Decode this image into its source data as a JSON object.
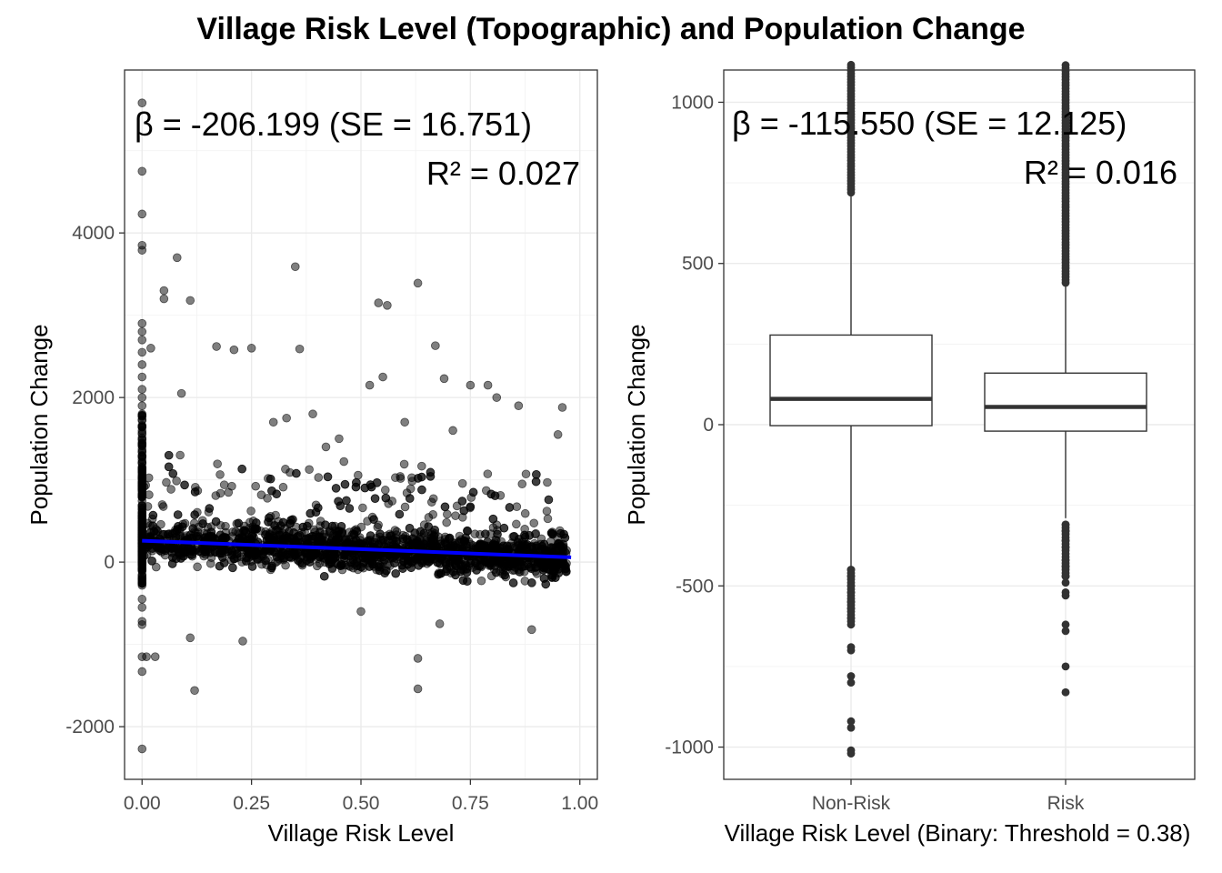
{
  "title": "Village Risk Level (Topographic) and Population Change",
  "chart_data": [
    {
      "type": "scatter",
      "xlabel": "Village Risk Level",
      "ylabel": "Population Change",
      "xlim": [
        -0.04,
        1.04
      ],
      "ylim": [
        -2640,
        5980
      ],
      "x_ticks": [
        "0.00",
        "0.25",
        "0.50",
        "0.75",
        "1.00"
      ],
      "y_ticks": [
        "-2000",
        "0",
        "2000",
        "4000"
      ],
      "grid": true,
      "annotation": {
        "beta": "β = -206.199 (SE = 16.751)",
        "r2": "R² = 0.027"
      },
      "fit_line": {
        "color": "#0000ff",
        "x": [
          0.0,
          0.98
        ],
        "y": [
          260,
          58
        ]
      },
      "point_color": "#000000",
      "points": [
        {
          "x": 0.0,
          "y": 5580
        },
        {
          "x": 0.0,
          "y": 4750
        },
        {
          "x": 0.0,
          "y": 4230
        },
        {
          "x": 0.0,
          "y": 3850
        },
        {
          "x": 0.0,
          "y": 3790
        },
        {
          "x": 0.0,
          "y": 2900
        },
        {
          "x": 0.0,
          "y": 2800
        },
        {
          "x": 0.0,
          "y": 2700
        },
        {
          "x": 0.0,
          "y": 2550
        },
        {
          "x": 0.0,
          "y": 2400
        },
        {
          "x": 0.0,
          "y": 2250
        },
        {
          "x": 0.0,
          "y": 2100
        },
        {
          "x": 0.0,
          "y": 2000
        },
        {
          "x": 0.0,
          "y": 1900
        },
        {
          "x": 0.0,
          "y": 1800
        },
        {
          "x": 0.0,
          "y": -450
        },
        {
          "x": 0.0,
          "y": -550
        },
        {
          "x": 0.0,
          "y": -720
        },
        {
          "x": 0.0,
          "y": -760
        },
        {
          "x": 0.0,
          "y": -1150
        },
        {
          "x": 0.0,
          "y": -1330
        },
        {
          "x": 0.0,
          "y": -2270
        },
        {
          "x": 0.01,
          "y": -1150
        },
        {
          "x": 0.03,
          "y": -1150
        },
        {
          "x": 0.05,
          "y": 3300
        },
        {
          "x": 0.05,
          "y": 3200
        },
        {
          "x": 0.08,
          "y": 3700
        },
        {
          "x": 0.11,
          "y": 3180
        },
        {
          "x": 0.12,
          "y": -1560
        },
        {
          "x": 0.11,
          "y": -920
        },
        {
          "x": 0.17,
          "y": 2620
        },
        {
          "x": 0.21,
          "y": 2580
        },
        {
          "x": 0.25,
          "y": 2600
        },
        {
          "x": 0.23,
          "y": -960
        },
        {
          "x": 0.35,
          "y": 3590
        },
        {
          "x": 0.36,
          "y": 2590
        },
        {
          "x": 0.54,
          "y": 3150
        },
        {
          "x": 0.56,
          "y": 3120
        },
        {
          "x": 0.63,
          "y": 3390
        },
        {
          "x": 0.63,
          "y": -1170
        },
        {
          "x": 0.63,
          "y": -1540
        },
        {
          "x": 0.67,
          "y": 2630
        },
        {
          "x": 0.09,
          "y": 2050
        },
        {
          "x": 0.33,
          "y": 1750
        },
        {
          "x": 0.39,
          "y": 1800
        },
        {
          "x": 0.52,
          "y": 2150
        },
        {
          "x": 0.55,
          "y": 2250
        },
        {
          "x": 0.69,
          "y": 2230
        },
        {
          "x": 0.75,
          "y": 2150
        },
        {
          "x": 0.79,
          "y": 2150
        },
        {
          "x": 0.81,
          "y": 2000
        },
        {
          "x": 0.86,
          "y": 1900
        },
        {
          "x": 0.96,
          "y": 1880
        },
        {
          "x": 0.95,
          "y": 1550
        },
        {
          "x": 0.68,
          "y": -750
        },
        {
          "x": 0.89,
          "y": -820
        },
        {
          "x": 0.5,
          "y": -600
        },
        {
          "x": 0.02,
          "y": 2600
        },
        {
          "x": 0.3,
          "y": 1700
        },
        {
          "x": 0.45,
          "y": 1500
        },
        {
          "x": 0.71,
          "y": 1600
        },
        {
          "x": 0.6,
          "y": 1700
        },
        {
          "x": 0.42,
          "y": 1400
        }
      ]
    },
    {
      "type": "box",
      "xlabel": "Village Risk Level (Binary: Threshold = 0.38)",
      "ylabel": "Population Change",
      "categories": [
        "Non-Risk",
        "Risk"
      ],
      "ylim": [
        -1100,
        1100
      ],
      "y_ticks": [
        "-1000",
        "-500",
        "0",
        "500",
        "1000"
      ],
      "grid": true,
      "annotation": {
        "beta": "β = -115.550 (SE = 12.125)",
        "r2": "R² = 0.016"
      },
      "boxes": [
        {
          "name": "Non-Risk",
          "q1": -3,
          "median": 80,
          "q3": 278,
          "whisker_low": -440,
          "whisker_high": 708,
          "outliers": [
            1100,
            1060,
            1020,
            980,
            940,
            900,
            860,
            820,
            780,
            740,
            720,
            -450,
            -470,
            -500,
            -520,
            -550,
            -570,
            -600,
            -620,
            -690,
            -700,
            -780,
            -800,
            -920,
            -940,
            -1010,
            -1020
          ]
        },
        {
          "name": "Risk",
          "q1": -20,
          "median": 55,
          "q3": 160,
          "whisker_low": -290,
          "whisker_high": 430,
          "outliers": [
            1090,
            1040,
            990,
            930,
            880,
            830,
            780,
            730,
            680,
            630,
            580,
            530,
            480,
            440,
            -310,
            -330,
            -360,
            -380,
            -420,
            -440,
            -470,
            -490,
            -520,
            -530,
            -620,
            -640,
            -750,
            -830
          ]
        }
      ]
    }
  ]
}
